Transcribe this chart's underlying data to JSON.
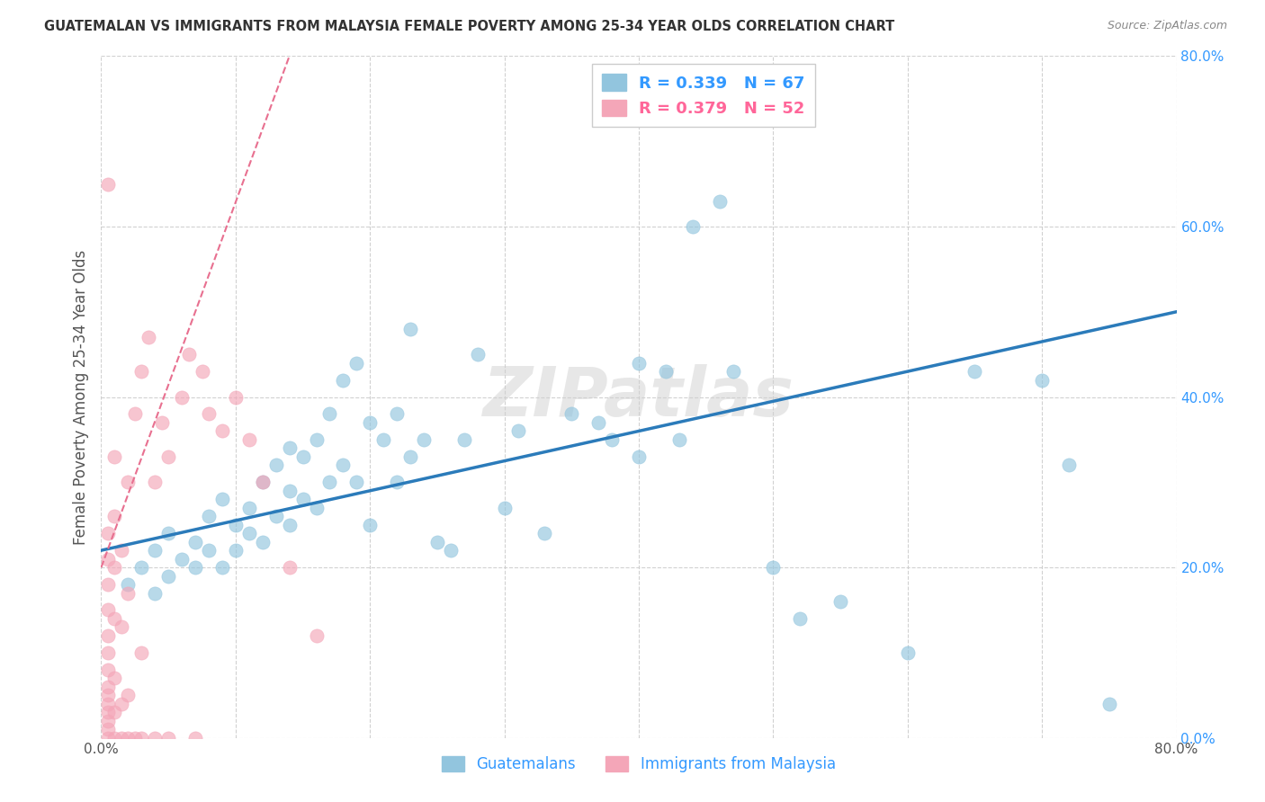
{
  "title": "GUATEMALAN VS IMMIGRANTS FROM MALAYSIA FEMALE POVERTY AMONG 25-34 YEAR OLDS CORRELATION CHART",
  "source": "Source: ZipAtlas.com",
  "ylabel": "Female Poverty Among 25-34 Year Olds",
  "xlim": [
    0,
    0.8
  ],
  "ylim": [
    0,
    0.8
  ],
  "yticks_right": [
    0.0,
    0.2,
    0.4,
    0.6,
    0.8
  ],
  "ytick_labels_right": [
    "0.0%",
    "20.0%",
    "40.0%",
    "60.0%",
    "80.0%"
  ],
  "blue_color": "#92c5de",
  "pink_color": "#f4a6b8",
  "blue_line_color": "#2b7bba",
  "pink_line_color": "#e87090",
  "watermark": "ZIPatlas",
  "blue_scatter_x": [
    0.02,
    0.03,
    0.04,
    0.04,
    0.05,
    0.05,
    0.06,
    0.07,
    0.07,
    0.08,
    0.08,
    0.09,
    0.09,
    0.1,
    0.1,
    0.11,
    0.11,
    0.12,
    0.12,
    0.13,
    0.13,
    0.14,
    0.14,
    0.14,
    0.15,
    0.15,
    0.16,
    0.16,
    0.17,
    0.17,
    0.18,
    0.18,
    0.19,
    0.19,
    0.2,
    0.2,
    0.21,
    0.22,
    0.22,
    0.23,
    0.23,
    0.24,
    0.25,
    0.26,
    0.27,
    0.28,
    0.3,
    0.31,
    0.33,
    0.35,
    0.37,
    0.38,
    0.4,
    0.4,
    0.42,
    0.43,
    0.44,
    0.46,
    0.47,
    0.5,
    0.52,
    0.55,
    0.6,
    0.65,
    0.7,
    0.72,
    0.75
  ],
  "blue_scatter_y": [
    0.18,
    0.2,
    0.17,
    0.22,
    0.19,
    0.24,
    0.21,
    0.2,
    0.23,
    0.22,
    0.26,
    0.2,
    0.28,
    0.22,
    0.25,
    0.24,
    0.27,
    0.23,
    0.3,
    0.26,
    0.32,
    0.25,
    0.29,
    0.34,
    0.28,
    0.33,
    0.27,
    0.35,
    0.3,
    0.38,
    0.32,
    0.42,
    0.3,
    0.44,
    0.25,
    0.37,
    0.35,
    0.3,
    0.38,
    0.33,
    0.48,
    0.35,
    0.23,
    0.22,
    0.35,
    0.45,
    0.27,
    0.36,
    0.24,
    0.38,
    0.37,
    0.35,
    0.44,
    0.33,
    0.43,
    0.35,
    0.6,
    0.63,
    0.43,
    0.2,
    0.14,
    0.16,
    0.1,
    0.43,
    0.42,
    0.32,
    0.04
  ],
  "pink_scatter_x": [
    0.005,
    0.005,
    0.005,
    0.005,
    0.005,
    0.005,
    0.005,
    0.005,
    0.005,
    0.005,
    0.005,
    0.005,
    0.005,
    0.005,
    0.005,
    0.01,
    0.01,
    0.01,
    0.01,
    0.01,
    0.01,
    0.01,
    0.015,
    0.015,
    0.015,
    0.015,
    0.02,
    0.02,
    0.02,
    0.02,
    0.025,
    0.025,
    0.03,
    0.03,
    0.03,
    0.035,
    0.04,
    0.04,
    0.045,
    0.05,
    0.05,
    0.06,
    0.065,
    0.07,
    0.075,
    0.08,
    0.09,
    0.1,
    0.11,
    0.12,
    0.14,
    0.16
  ],
  "pink_scatter_y": [
    0.0,
    0.01,
    0.02,
    0.03,
    0.04,
    0.05,
    0.06,
    0.08,
    0.1,
    0.12,
    0.15,
    0.18,
    0.21,
    0.24,
    0.65,
    0.0,
    0.03,
    0.07,
    0.14,
    0.2,
    0.26,
    0.33,
    0.0,
    0.04,
    0.13,
    0.22,
    0.0,
    0.05,
    0.17,
    0.3,
    0.0,
    0.38,
    0.0,
    0.1,
    0.43,
    0.47,
    0.0,
    0.3,
    0.37,
    0.0,
    0.33,
    0.4,
    0.45,
    0.0,
    0.43,
    0.38,
    0.36,
    0.4,
    0.35,
    0.3,
    0.2,
    0.12
  ]
}
